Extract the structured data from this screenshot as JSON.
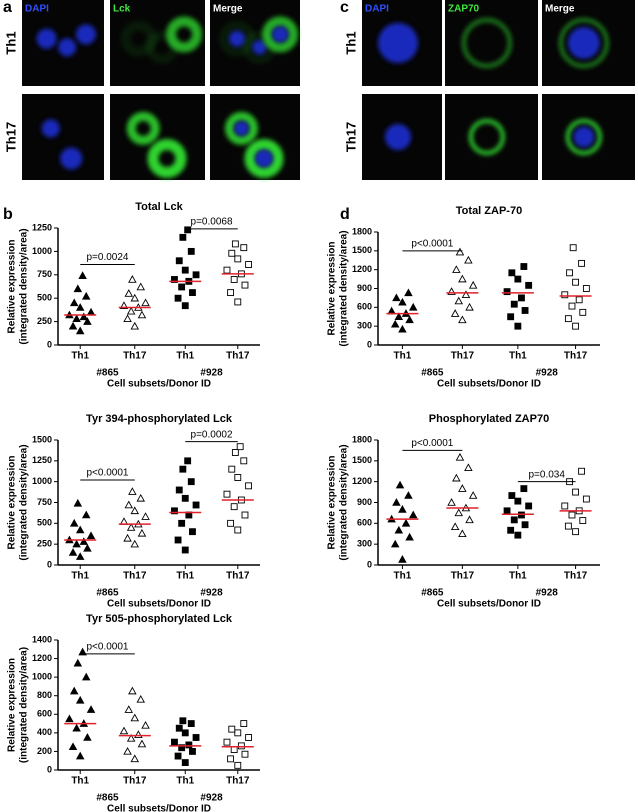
{
  "images": [
    {
      "panel": "a",
      "columns": [
        "DAPI",
        "Lck",
        "Merge"
      ],
      "rows": [
        "Th1",
        "Th17"
      ]
    },
    {
      "panel": "c",
      "columns": [
        "DAPI",
        "ZAP70",
        "Merge"
      ],
      "rows": [
        "Th1",
        "Th17"
      ]
    }
  ],
  "plot_panels": [
    "b",
    "d"
  ],
  "chart_data": [
    {
      "type": "dot",
      "title": "Total Lck",
      "ylabel": [
        "Relative expression",
        "(integrated density/area)"
      ],
      "xlabel": "Cell subsets/Donor ID",
      "categories": [
        "Th1",
        "Th17",
        "Th1",
        "Th17"
      ],
      "donors": [
        "#865",
        "#928"
      ],
      "ylim": [
        0,
        1250
      ],
      "yticks": [
        0,
        250,
        500,
        750,
        1000,
        1250
      ],
      "groups": [
        {
          "marker": "triangle",
          "filled": true,
          "mean": 320,
          "values": [
            150,
            200,
            250,
            280,
            300,
            320,
            350,
            400,
            450,
            520,
            600,
            740
          ]
        },
        {
          "marker": "triangle",
          "filled": false,
          "mean": 400,
          "values": [
            200,
            280,
            320,
            360,
            400,
            420,
            450,
            500,
            550,
            620,
            700
          ]
        },
        {
          "marker": "square",
          "filled": true,
          "mean": 680,
          "values": [
            420,
            500,
            560,
            620,
            680,
            700,
            750,
            800,
            900,
            1000,
            1150,
            1230
          ]
        },
        {
          "marker": "square",
          "filled": false,
          "mean": 760,
          "values": [
            460,
            560,
            640,
            700,
            760,
            800,
            860,
            920,
            980,
            1040,
            1080
          ]
        }
      ],
      "comparisons": [
        {
          "from": 0,
          "to": 1,
          "label": "p=0.0024",
          "value": 860
        },
        {
          "from": 2,
          "to": 3,
          "label": "p=0.0068",
          "value": 1240
        }
      ]
    },
    {
      "type": "dot",
      "title": "Tyr 394-phosphorylated Lck",
      "ylabel": [
        "Relative expression",
        "(integrated density/area)"
      ],
      "xlabel": "Cell subsets/Donor ID",
      "categories": [
        "Th1",
        "Th17",
        "Th1",
        "Th17"
      ],
      "donors": [
        "#865",
        "#928"
      ],
      "ylim": [
        0,
        1500
      ],
      "yticks": [
        0,
        250,
        500,
        750,
        1000,
        1250,
        1500
      ],
      "groups": [
        {
          "marker": "triangle",
          "filled": true,
          "mean": 300,
          "values": [
            100,
            150,
            200,
            250,
            280,
            300,
            350,
            420,
            500,
            600,
            740
          ]
        },
        {
          "marker": "triangle",
          "filled": false,
          "mean": 490,
          "values": [
            250,
            320,
            380,
            450,
            490,
            520,
            580,
            650,
            720,
            800,
            880
          ]
        },
        {
          "marker": "square",
          "filled": true,
          "mean": 630,
          "values": [
            180,
            300,
            400,
            500,
            600,
            650,
            720,
            800,
            900,
            1000,
            1150,
            1250
          ]
        },
        {
          "marker": "square",
          "filled": false,
          "mean": 780,
          "values": [
            420,
            500,
            600,
            700,
            780,
            850,
            950,
            1050,
            1150,
            1250,
            1350,
            1420
          ]
        }
      ],
      "comparisons": [
        {
          "from": 0,
          "to": 1,
          "label": "p<0.0001",
          "value": 1020
        },
        {
          "from": 2,
          "to": 3,
          "label": "p=0.0002",
          "value": 1480
        }
      ]
    },
    {
      "type": "dot",
      "title": "Tyr 505-phosphorylated Lck",
      "ylabel": [
        "Relative expression",
        "(integrated density/area)"
      ],
      "xlabel": "Cell subsets/Donor ID",
      "categories": [
        "Th1",
        "Th17",
        "Th1",
        "Th17"
      ],
      "donors": [
        "#865",
        "#928"
      ],
      "ylim": [
        0,
        1400
      ],
      "yticks": [
        0,
        200,
        400,
        600,
        800,
        1000,
        1200,
        1400
      ],
      "groups": [
        {
          "marker": "triangle",
          "filled": true,
          "mean": 500,
          "values": [
            150,
            250,
            350,
            450,
            500,
            550,
            650,
            750,
            850,
            1000,
            1150,
            1270
          ]
        },
        {
          "marker": "triangle",
          "filled": false,
          "mean": 370,
          "values": [
            120,
            200,
            280,
            340,
            380,
            420,
            480,
            560,
            650,
            760,
            850
          ]
        },
        {
          "marker": "square",
          "filled": true,
          "mean": 260,
          "values": [
            80,
            150,
            200,
            240,
            270,
            300,
            350,
            400,
            450,
            500,
            530
          ]
        },
        {
          "marker": "square",
          "filled": false,
          "mean": 250,
          "values": [
            50,
            120,
            170,
            220,
            260,
            300,
            350,
            400,
            440,
            500
          ]
        }
      ],
      "comparisons": [
        {
          "from": 0,
          "to": 1,
          "label": "p<0.0001",
          "value": 1250
        }
      ]
    },
    {
      "type": "dot",
      "title": "Total ZAP-70",
      "ylabel": [
        "Relative expression",
        "(integrated density/area)"
      ],
      "xlabel": "Cell subsets/Donor ID",
      "categories": [
        "Th1",
        "Th17",
        "Th1",
        "Th17"
      ],
      "donors": [
        "#865",
        "#928"
      ],
      "ylim": [
        0,
        1800
      ],
      "yticks": [
        0,
        300,
        600,
        900,
        1200,
        1500,
        1800
      ],
      "groups": [
        {
          "marker": "triangle",
          "filled": true,
          "mean": 500,
          "values": [
            250,
            330,
            400,
            450,
            500,
            540,
            600,
            680,
            750,
            830
          ]
        },
        {
          "marker": "triangle",
          "filled": false,
          "mean": 830,
          "values": [
            400,
            500,
            600,
            700,
            800,
            850,
            950,
            1050,
            1200,
            1350,
            1480
          ]
        },
        {
          "marker": "square",
          "filled": true,
          "mean": 830,
          "values": [
            300,
            450,
            550,
            650,
            750,
            850,
            950,
            1050,
            1150,
            1250
          ]
        },
        {
          "marker": "square",
          "filled": false,
          "mean": 780,
          "values": [
            300,
            420,
            520,
            620,
            720,
            800,
            900,
            1000,
            1150,
            1300,
            1550
          ]
        }
      ],
      "comparisons": [
        {
          "from": 0,
          "to": 1,
          "label": "p<0.0001",
          "value": 1500
        }
      ]
    },
    {
      "type": "dot",
      "title": "Phosphorylated ZAP70",
      "ylabel": [
        "Relative expression",
        "(integrated density/area)"
      ],
      "xlabel": "Cell subsets/Donor ID",
      "categories": [
        "Th1",
        "Th17",
        "Th1",
        "Th17"
      ],
      "donors": [
        "#865",
        "#928"
      ],
      "ylim": [
        0,
        1800
      ],
      "yticks": [
        0,
        300,
        600,
        900,
        1200,
        1500,
        1800
      ],
      "groups": [
        {
          "marker": "triangle",
          "filled": true,
          "mean": 660,
          "values": [
            80,
            300,
            400,
            500,
            600,
            660,
            720,
            800,
            900,
            1000,
            1150
          ]
        },
        {
          "marker": "triangle",
          "filled": false,
          "mean": 820,
          "values": [
            450,
            550,
            650,
            750,
            820,
            900,
            1000,
            1100,
            1250,
            1400,
            1550
          ]
        },
        {
          "marker": "square",
          "filled": true,
          "mean": 730,
          "values": [
            430,
            500,
            580,
            650,
            720,
            780,
            850,
            920,
            1000,
            1100
          ]
        },
        {
          "marker": "square",
          "filled": false,
          "mean": 780,
          "values": [
            480,
            560,
            640,
            720,
            780,
            850,
            950,
            1050,
            1200,
            1350
          ]
        }
      ],
      "comparisons": [
        {
          "from": 0,
          "to": 1,
          "label": "p<0.0001",
          "value": 1650
        },
        {
          "from": 2,
          "to": 3,
          "label": "p=0.034",
          "value": 1200
        }
      ]
    }
  ]
}
